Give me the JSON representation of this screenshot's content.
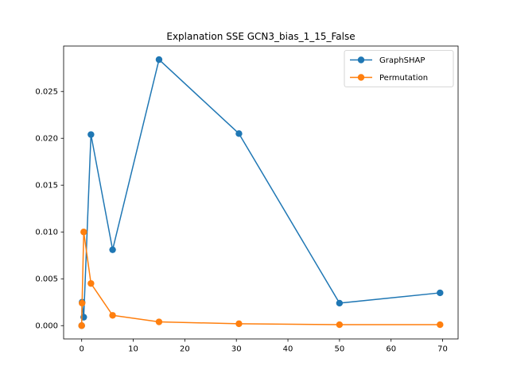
{
  "chart_data": {
    "type": "line",
    "title": "Explanation SSE GCN3_bias_1_15_False",
    "xlabel": "",
    "ylabel": "",
    "xlim": [
      -3.5,
      73
    ],
    "ylim": [
      -0.00142,
      0.02985
    ],
    "xticks": [
      0,
      10,
      20,
      30,
      40,
      50,
      60,
      70
    ],
    "yticks": [
      0.0,
      0.005,
      0.01,
      0.015,
      0.02,
      0.025
    ],
    "ytick_labels": [
      "0.000",
      "0.005",
      "0.010",
      "0.015",
      "0.020",
      "0.025"
    ],
    "grid": false,
    "legend_position": "top-right",
    "series": [
      {
        "name": "GraphSHAP",
        "color": "#1f77b4",
        "x": [
          0,
          0.08,
          0.4,
          1.8,
          6,
          15,
          30.5,
          50,
          69.5
        ],
        "y": [
          0.0,
          0.0025,
          0.0009,
          0.0204,
          0.0081,
          0.0284,
          0.0205,
          0.0024,
          0.0035
        ]
      },
      {
        "name": "Permutation",
        "color": "#ff7f0e",
        "x": [
          0,
          0.08,
          0.4,
          1.8,
          6,
          15,
          30.5,
          50,
          69.5
        ],
        "y": [
          0.0,
          0.0024,
          0.01,
          0.0045,
          0.0011,
          0.0004,
          0.0002,
          0.0001,
          0.0001
        ]
      }
    ]
  }
}
